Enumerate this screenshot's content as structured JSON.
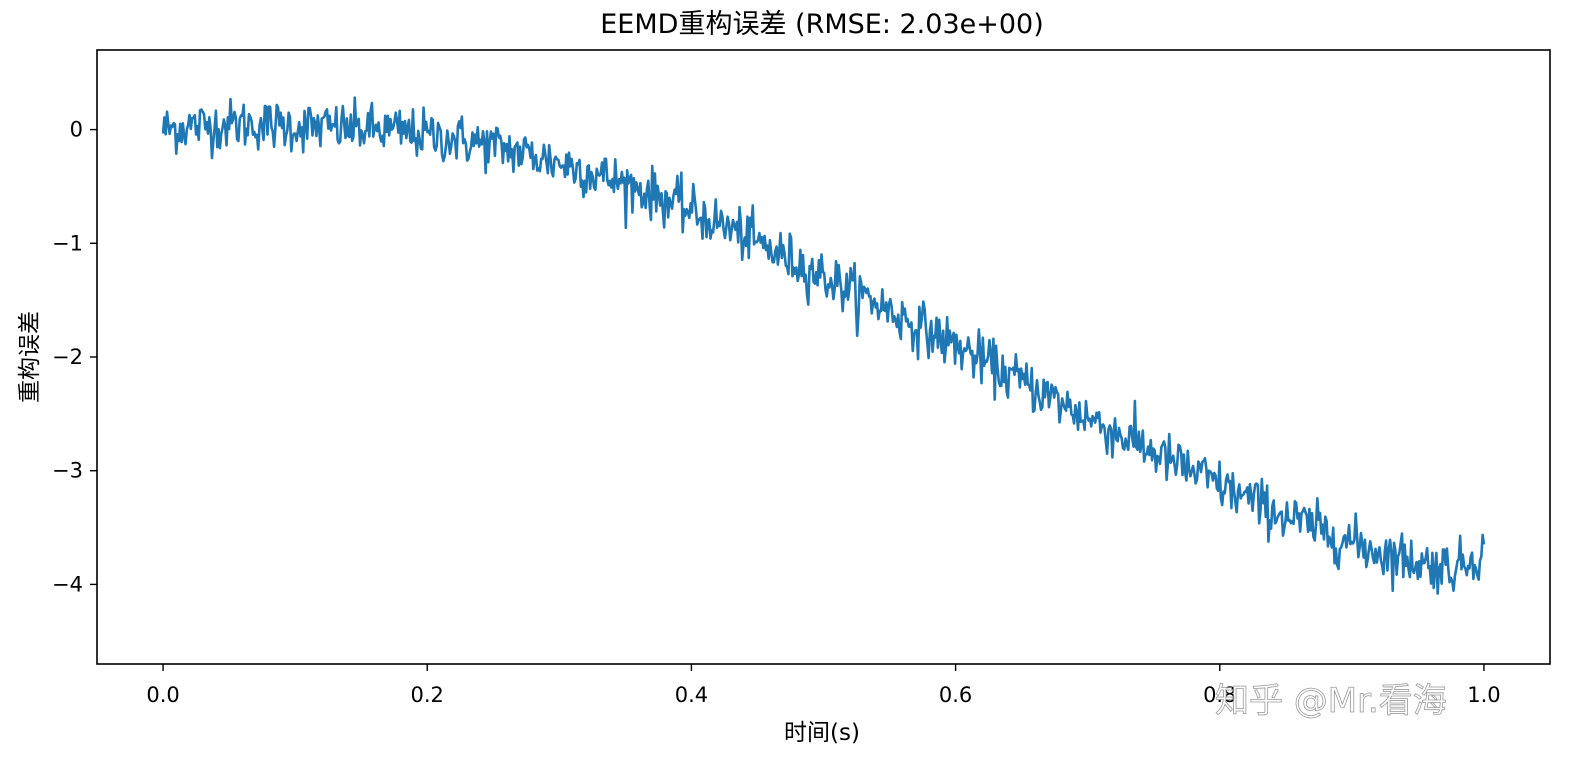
{
  "chart_data": {
    "type": "line",
    "title": "EEMD重构误差 (RMSE: 2.03e+00)",
    "xlabel": "时间(s)",
    "ylabel": "重构误差",
    "xlim": [
      -0.05,
      1.05
    ],
    "ylim": [
      -4.7,
      0.7
    ],
    "x_ticks": [
      0.0,
      0.2,
      0.4,
      0.6,
      0.8,
      1.0
    ],
    "x_tick_labels": [
      "0.0",
      "0.2",
      "0.4",
      "0.6",
      "0.8",
      "1.0"
    ],
    "y_ticks": [
      0,
      -1,
      -2,
      -3,
      -4
    ],
    "y_tick_labels": [
      "0",
      "−1",
      "−2",
      "−3",
      "−4"
    ],
    "grid": false,
    "legend": "none",
    "series": [
      {
        "color": "#1f77b4",
        "x": [
          0.0,
          0.02,
          0.04,
          0.06,
          0.08,
          0.1,
          0.12,
          0.14,
          0.16,
          0.18,
          0.2,
          0.22,
          0.24,
          0.26,
          0.28,
          0.3,
          0.32,
          0.34,
          0.36,
          0.38,
          0.4,
          0.42,
          0.44,
          0.46,
          0.48,
          0.5,
          0.52,
          0.54,
          0.56,
          0.58,
          0.6,
          0.62,
          0.64,
          0.66,
          0.68,
          0.7,
          0.72,
          0.74,
          0.76,
          0.78,
          0.8,
          0.82,
          0.84,
          0.86,
          0.88,
          0.9,
          0.92,
          0.94,
          0.96,
          0.98,
          1.0
        ],
        "y": [
          0.0,
          0.03,
          0.04,
          0.05,
          0.04,
          0.03,
          0.02,
          0.01,
          0.0,
          -0.02,
          -0.05,
          -0.08,
          -0.12,
          -0.17,
          -0.23,
          -0.29,
          -0.36,
          -0.44,
          -0.52,
          -0.61,
          -0.72,
          -0.82,
          -0.93,
          -1.06,
          -1.17,
          -1.29,
          -1.41,
          -1.52,
          -1.66,
          -1.78,
          -1.9,
          -2.03,
          -2.16,
          -2.27,
          -2.41,
          -2.53,
          -2.66,
          -2.77,
          -2.9,
          -3.01,
          -3.13,
          -3.24,
          -3.35,
          -3.45,
          -3.54,
          -3.63,
          -3.71,
          -3.77,
          -3.83,
          -3.85,
          -3.7
        ],
        "noise_amplitude": 0.2
      }
    ]
  },
  "watermark": "知乎 @Mr.看海"
}
